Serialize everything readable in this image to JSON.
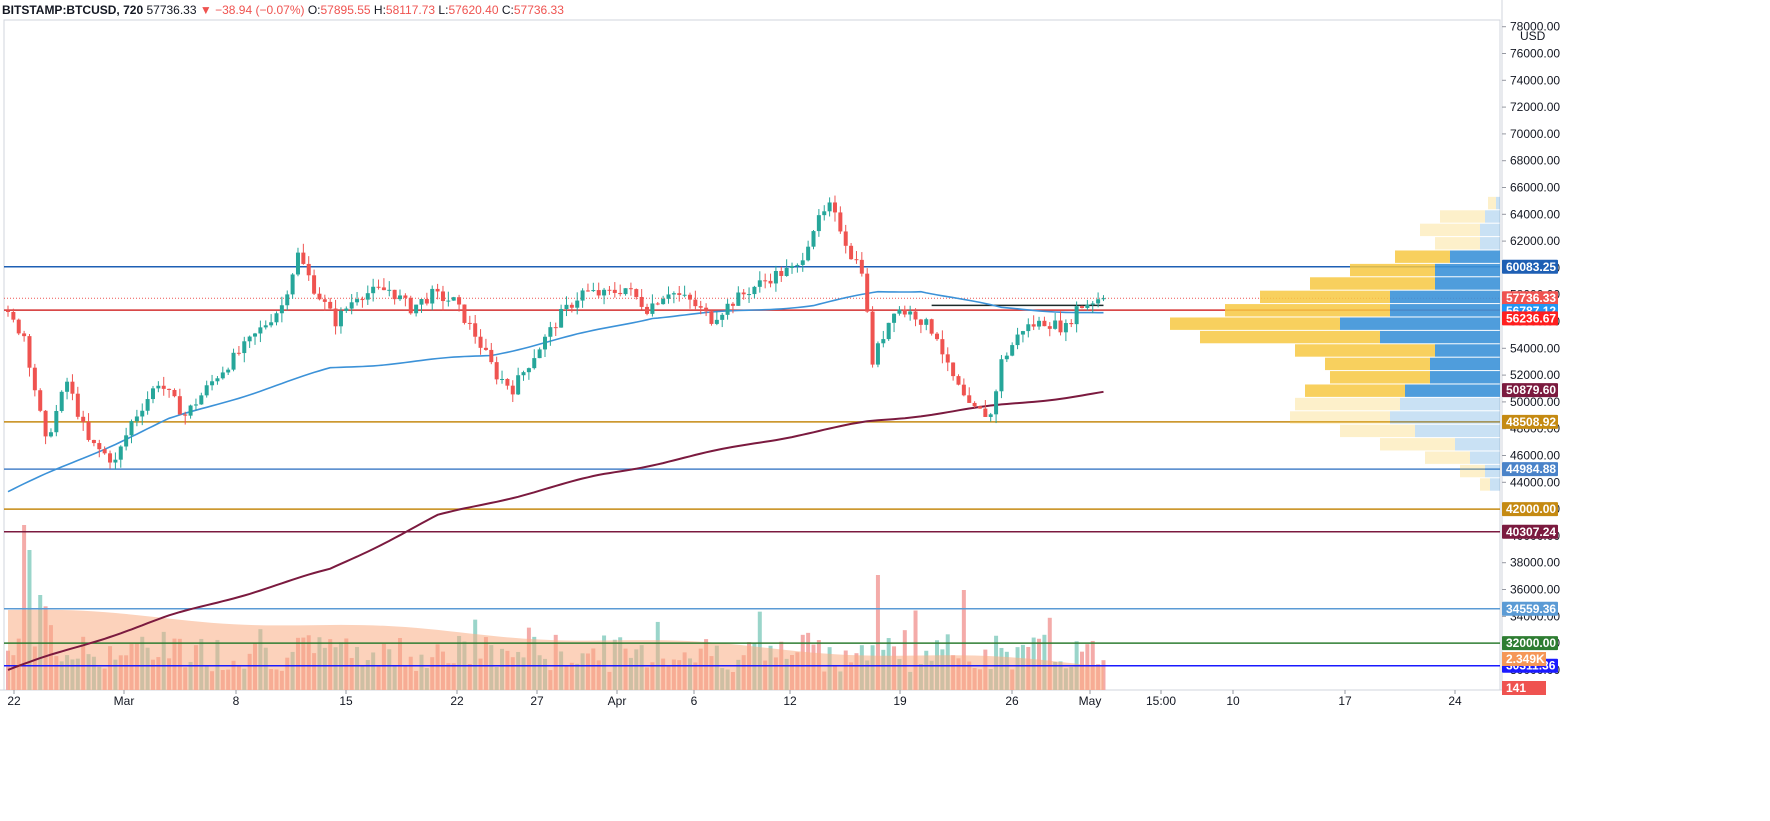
{
  "header": {
    "symbol": "BITSTAMP:BTCUSD, 720",
    "last": "57736.33",
    "change": "▼ −38.94 (−0.07%)",
    "o_label": "O:",
    "o": "57895.55",
    "h_label": "H:",
    "h": "58117.73",
    "l_label": "L:",
    "l": "57620.40",
    "c_label": "C:",
    "c": "57736.33"
  },
  "currency": "USD",
  "colors": {
    "up": "#26a69a",
    "down": "#ef5350",
    "ma_fast": "#3c92d8",
    "ma_slow": "#7b1a3f",
    "vp_up": "#3c92d8",
    "vp_down": "#f7c842",
    "vol_avg": "#f9ad83"
  },
  "chart_data": {
    "type": "candlestick",
    "title": "BITSTAMP:BTCUSD, 720",
    "ylim": [
      28500,
      78500
    ],
    "y_ticks": [
      78000,
      76000,
      74000,
      72000,
      70000,
      68000,
      66000,
      64000,
      62000,
      60000,
      58000,
      56000,
      54000,
      52000,
      50000,
      48000,
      46000,
      44000,
      42000,
      40000,
      38000,
      36000,
      34000,
      32000,
      30000
    ],
    "x_ticks": [
      "22",
      "Mar",
      "8",
      "15",
      "22",
      "27",
      "Apr",
      "6",
      "12",
      "19",
      "26",
      "May",
      "15:00",
      "10",
      "17",
      "24"
    ],
    "price_path": [
      [
        0,
        56800
      ],
      [
        4,
        55000
      ],
      [
        8,
        47000
      ],
      [
        12,
        51500
      ],
      [
        16,
        47000
      ],
      [
        21,
        45500
      ],
      [
        24,
        48500
      ],
      [
        29,
        51500
      ],
      [
        34,
        49000
      ],
      [
        40,
        52000
      ],
      [
        46,
        54500
      ],
      [
        52,
        57200
      ],
      [
        55,
        61000
      ],
      [
        58,
        58500
      ],
      [
        62,
        56000
      ],
      [
        66,
        58000
      ],
      [
        72,
        58400
      ],
      [
        76,
        57000
      ],
      [
        80,
        58000
      ],
      [
        84,
        57500
      ],
      [
        88,
        55000
      ],
      [
        92,
        52000
      ],
      [
        95,
        51000
      ],
      [
        99,
        53500
      ],
      [
        104,
        56500
      ],
      [
        108,
        58200
      ],
      [
        112,
        58000
      ],
      [
        116,
        58500
      ],
      [
        120,
        57000
      ],
      [
        124,
        58300
      ],
      [
        128,
        57500
      ],
      [
        132,
        56200
      ],
      [
        136,
        57500
      ],
      [
        140,
        58600
      ],
      [
        144,
        59500
      ],
      [
        148,
        60000
      ],
      [
        151,
        63000
      ],
      [
        154,
        64500
      ],
      [
        156,
        63000
      ],
      [
        158,
        61000
      ],
      [
        160,
        60000
      ],
      [
        162,
        53000
      ],
      [
        166,
        57000
      ],
      [
        170,
        56500
      ],
      [
        174,
        55000
      ],
      [
        176,
        52500
      ],
      [
        180,
        49500
      ],
      [
        184,
        49000
      ],
      [
        186,
        53000
      ],
      [
        190,
        55500
      ],
      [
        194,
        56000
      ],
      [
        198,
        55500
      ],
      [
        200,
        57000
      ],
      [
        204,
        57736
      ]
    ],
    "ma_fast": [
      [
        0,
        43300
      ],
      [
        30,
        48700
      ],
      [
        60,
        52500
      ],
      [
        90,
        53500
      ],
      [
        120,
        56300
      ],
      [
        150,
        57200
      ],
      [
        162,
        58200
      ],
      [
        170,
        58300
      ],
      [
        185,
        57000
      ],
      [
        204,
        56600
      ]
    ],
    "ma_slow": [
      [
        0,
        30000
      ],
      [
        30,
        34000
      ],
      [
        60,
        37500
      ],
      [
        80,
        41500
      ],
      [
        110,
        44500
      ],
      [
        140,
        47000
      ],
      [
        160,
        48500
      ],
      [
        180,
        49500
      ],
      [
        204,
        50700
      ]
    ],
    "support_resistance": [
      {
        "price": 60083.25,
        "label": "60083.25",
        "line_color": "#1e5fb4",
        "badge_color": "#1e5fb4"
      },
      {
        "price": 56850.0,
        "label": "56850.00",
        "line_color": "#d32f2f",
        "badge_color": "#1b4d3e"
      },
      {
        "price": 48508.92,
        "label": "48508.92",
        "line_color": "#c58a12",
        "badge_color": "#c58a12"
      },
      {
        "price": 44984.88,
        "label": "44984.88",
        "line_color": "#4a83c9",
        "badge_color": "#4a83c9"
      },
      {
        "price": 42000.0,
        "label": "42000.00",
        "line_color": "#c58a12",
        "badge_color": "#c58a12"
      },
      {
        "price": 40307.24,
        "label": "40307.24",
        "line_color": "#7b1a3f",
        "badge_color": "#7b1a3f"
      },
      {
        "price": 34559.36,
        "label": "34559.36",
        "line_color": "#5b9bd5",
        "badge_color": "#5b9bd5"
      },
      {
        "price": 32000.0,
        "label": "32000.00",
        "line_color": "#2e7d32",
        "badge_color": "#2e7d32"
      },
      {
        "price": 30311.36,
        "label": "30311.36",
        "line_color": "#1a1aff",
        "badge_color": "#1a1aff"
      }
    ],
    "price_badges": [
      {
        "price": 57736.33,
        "label": "57736.33",
        "color": "#ef5350"
      },
      {
        "price": 57736.33,
        "label": "10:16:41",
        "color": "#ef5350",
        "offset_rows": 1
      },
      {
        "price": 56787.12,
        "label": "56787.12",
        "color": "#2196f3"
      },
      {
        "price": 56236.67,
        "label": "56236.67",
        "color": "#ff1f1f"
      },
      {
        "price": 50879.6,
        "label": "50879.60",
        "color": "#7b1a3f"
      }
    ],
    "volume_badges": [
      {
        "label": "2.349K",
        "color": "#f59758",
        "row": 0
      },
      {
        "label": "141",
        "color": "#ef5350",
        "row": 1
      }
    ],
    "volume_profile": [
      {
        "price": 64800,
        "up": 8,
        "down": 4
      },
      {
        "price": 63800,
        "up": 45,
        "down": 15
      },
      {
        "price": 62800,
        "up": 60,
        "down": 20
      },
      {
        "price": 61800,
        "up": 45,
        "down": 20
      },
      {
        "price": 60800,
        "up": 55,
        "down": 50
      },
      {
        "price": 59800,
        "up": 85,
        "down": 65
      },
      {
        "price": 58800,
        "up": 125,
        "down": 65
      },
      {
        "price": 57800,
        "up": 130,
        "down": 110
      },
      {
        "price": 56800,
        "up": 165,
        "down": 110
      },
      {
        "price": 55800,
        "up": 170,
        "down": 160
      },
      {
        "price": 54800,
        "up": 180,
        "down": 120
      },
      {
        "price": 53800,
        "up": 140,
        "down": 65
      },
      {
        "price": 52800,
        "up": 105,
        "down": 70
      },
      {
        "price": 51800,
        "up": 100,
        "down": 70
      },
      {
        "price": 50800,
        "up": 100,
        "down": 95
      },
      {
        "price": 49800,
        "up": 105,
        "down": 100
      },
      {
        "price": 48800,
        "up": 100,
        "down": 110
      },
      {
        "price": 47800,
        "up": 75,
        "down": 85
      },
      {
        "price": 46800,
        "up": 75,
        "down": 45
      },
      {
        "price": 45800,
        "up": 45,
        "down": 30
      },
      {
        "price": 44800,
        "up": 25,
        "down": 15
      },
      {
        "price": 43800,
        "up": 10,
        "down": 10
      }
    ]
  }
}
